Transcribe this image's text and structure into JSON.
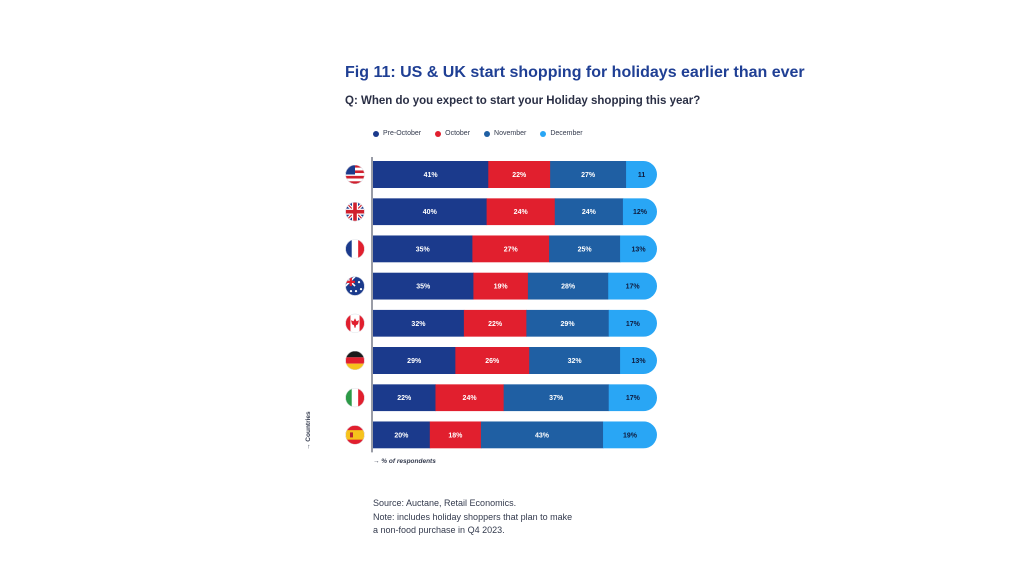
{
  "chart_data": {
    "type": "bar",
    "orientation": "horizontal-stacked",
    "title": "Fig 11: US & UK start shopping for holidays earlier than ever",
    "subtitle": "Q: When do you expect to start your Holiday shopping this year?",
    "xlabel": "→ % of respondents",
    "ylabel": "→ Countries",
    "legend_position": "top-left",
    "categories": [
      "US",
      "UK",
      "France",
      "Australia",
      "Canada",
      "Germany",
      "Italy",
      "Spain"
    ],
    "flag_icons": [
      "us-flag-icon",
      "uk-flag-icon",
      "france-flag-icon",
      "australia-flag-icon",
      "canada-flag-icon",
      "germany-flag-icon",
      "italy-flag-icon",
      "spain-flag-icon"
    ],
    "series": [
      {
        "name": "Pre-October",
        "color": "#1b3a8c",
        "values": [
          41,
          40,
          35,
          35,
          32,
          29,
          22,
          20
        ],
        "labels": [
          "41%",
          "40%",
          "35%",
          "35%",
          "32%",
          "29%",
          "22%",
          "20%"
        ]
      },
      {
        "name": "October",
        "color": "#e11f2e",
        "values": [
          22,
          24,
          27,
          19,
          22,
          26,
          24,
          18
        ],
        "labels": [
          "22%",
          "24%",
          "27%",
          "19%",
          "22%",
          "26%",
          "24%",
          "18%"
        ]
      },
      {
        "name": "November",
        "color": "#1f5fa3",
        "values": [
          27,
          24,
          25,
          28,
          29,
          32,
          37,
          43
        ],
        "labels": [
          "27%",
          "24%",
          "25%",
          "28%",
          "29%",
          "32%",
          "37%",
          "43%"
        ]
      },
      {
        "name": "December",
        "color": "#29a6f5",
        "values": [
          11,
          12,
          13,
          17,
          17,
          13,
          17,
          19
        ],
        "labels": [
          "11",
          "12%",
          "13%",
          "17%",
          "17%",
          "13%",
          "17%",
          "19%"
        ]
      }
    ],
    "xlim": [
      0,
      100
    ],
    "grid": false
  },
  "footer": {
    "source": "Source: Auctane, Retail Economics.",
    "note_line1": "Note: includes holiday shoppers that plan to make",
    "note_line2": "a non-food purchase in Q4 2023."
  }
}
